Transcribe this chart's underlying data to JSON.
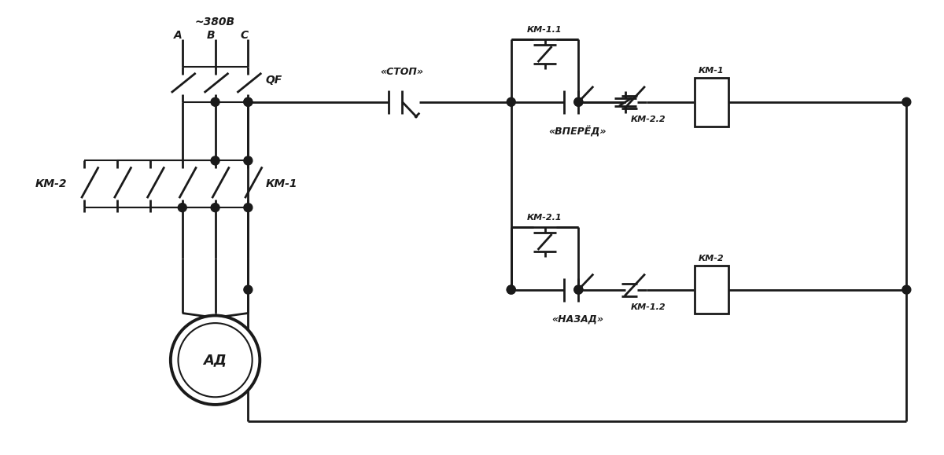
{
  "bg_color": "#ffffff",
  "lc": "#1a1a1a",
  "lw": 2.0,
  "lw_thin": 1.5,
  "labels": {
    "voltage": "~380В",
    "A": "A",
    "B": "B",
    "C": "C",
    "QF": "QF",
    "KM1_pwr": "КМ-1",
    "KM2_pwr": "КМ-2",
    "motor": "АД",
    "stop": "«СТОП»",
    "forward": "«ВПЕРЁД»",
    "backward": "«НАЗАД»",
    "KM11": "КМ-1.1",
    "KM22": "КМ-2.2",
    "KM1_coil": "КМ-1",
    "KM21": "КМ-2.1",
    "KM12": "КМ-1.2",
    "KM2_coil": "КМ-2"
  }
}
